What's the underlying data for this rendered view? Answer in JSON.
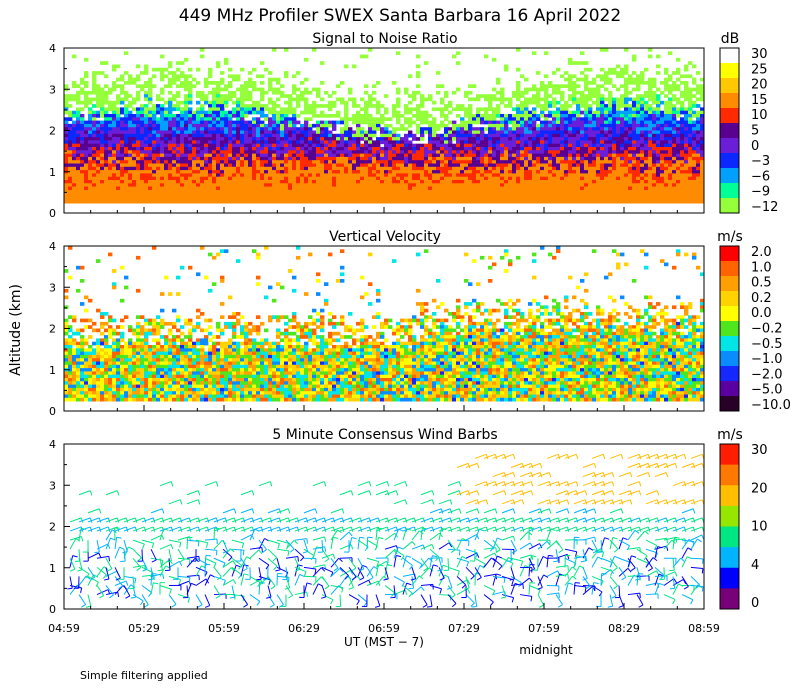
{
  "title": "449 MHz Profiler SWEX Santa Barbara 16 April 2022",
  "y_axis_label": "Altitude (km)",
  "x_axis_label": "UT  (MST − 7)",
  "midnight_label": "midnight",
  "footnote": "Simple filtering applied",
  "x_ticks": [
    "04:59",
    "05:29",
    "05:59",
    "06:29",
    "06:59",
    "07:29",
    "07:59",
    "08:29",
    "08:59"
  ],
  "y_ticks": [
    "0",
    "1",
    "2",
    "3",
    "4"
  ],
  "chart_data": [
    {
      "type": "heatmap",
      "title": "Signal to Noise Ratio",
      "unit": "dB",
      "x_range": [
        "04:59",
        "08:59"
      ],
      "ylim": [
        0,
        4
      ],
      "colorbar": {
        "labels": [
          "30",
          "25",
          "20",
          "15",
          "10",
          "5",
          "0",
          "−3",
          "−6",
          "−9",
          "−12"
        ],
        "colors": [
          "#ffffff",
          "#ffff00",
          "#ffc800",
          "#ff8c00",
          "#ff2a00",
          "#5a0090",
          "#6a1ed8",
          "#0a28ff",
          "#00a0ff",
          "#00ff96",
          "#96ff3c"
        ]
      }
    },
    {
      "type": "heatmap",
      "title": "Vertical Velocity",
      "unit": "m/s",
      "x_range": [
        "04:59",
        "08:59"
      ],
      "ylim": [
        0,
        4
      ],
      "colorbar": {
        "labels": [
          "2.0",
          "1.0",
          "0.5",
          "0.2",
          "0.0",
          "−0.2",
          "−0.5",
          "−1.0",
          "−2.0",
          "−5.0",
          "−10.0"
        ],
        "colors": [
          "#ff0000",
          "#ff6400",
          "#ffa000",
          "#ffd200",
          "#ffff00",
          "#50e61e",
          "#00e6e6",
          "#0a8cff",
          "#1428ff",
          "#5a00a0",
          "#280028"
        ]
      }
    },
    {
      "type": "scatter",
      "title": "5 Minute Consensus Wind Barbs",
      "unit": "m/s",
      "x_range": [
        "04:59",
        "08:59"
      ],
      "ylim": [
        0,
        4
      ],
      "colorbar": {
        "labels": [
          "30",
          "20",
          "10",
          "4",
          "0"
        ],
        "colors": [
          "#ff1e00",
          "#ff7800",
          "#ffbe00",
          "#96e600",
          "#00e682",
          "#00b4ff",
          "#0000ff",
          "#780078"
        ]
      }
    }
  ]
}
